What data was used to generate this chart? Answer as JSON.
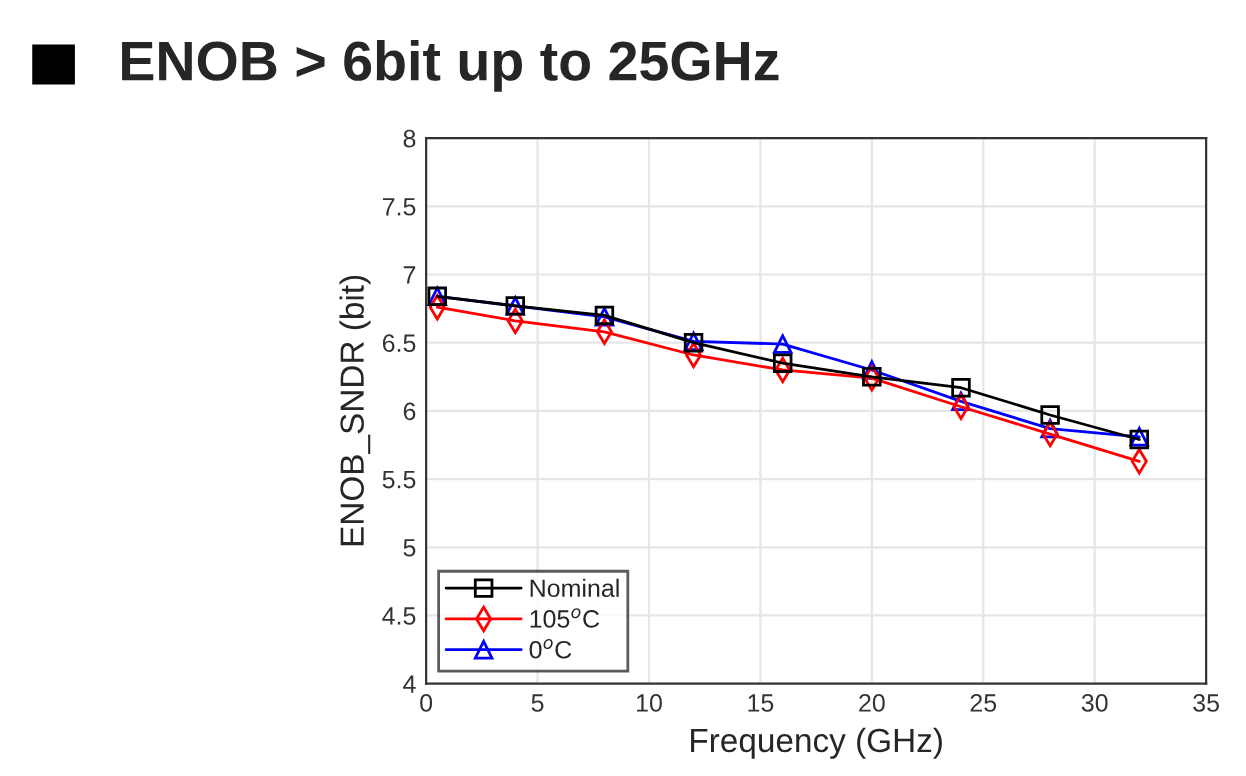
{
  "chart_data": {
    "type": "line",
    "title": "ENOB > 6bit up to 25GHz",
    "xlabel": "Frequency (GHz)",
    "ylabel": "ENOB_SNDR (bit)",
    "x": [
      0.5,
      4,
      8,
      12,
      16,
      20,
      24,
      28,
      32
    ],
    "series": [
      {
        "name": "Nominal",
        "color": "#000000",
        "marker": "square",
        "values": [
          6.84,
          6.77,
          6.7,
          6.5,
          6.35,
          6.25,
          6.17,
          5.97,
          5.79
        ]
      },
      {
        "name": "105$^{o}$C",
        "color": "#ff0000",
        "marker": "diamond",
        "values": [
          6.76,
          6.66,
          6.58,
          6.41,
          6.3,
          6.24,
          6.03,
          5.83,
          5.63
        ]
      },
      {
        "name": "0$^{o}$C",
        "color": "#0000ff",
        "marker": "triangle",
        "values": [
          6.84,
          6.77,
          6.69,
          6.51,
          6.49,
          6.3,
          6.07,
          5.87,
          5.81
        ]
      }
    ],
    "xlim": [
      0,
      35
    ],
    "xticks": [
      0,
      5,
      10,
      15,
      20,
      25,
      30,
      35
    ],
    "ylim": [
      4,
      8
    ],
    "yticks": [
      4,
      4.5,
      5,
      5.5,
      6,
      6.5,
      7,
      7.5,
      8
    ],
    "grid": true,
    "legend": "bottom left",
    "line_style": "solid"
  }
}
